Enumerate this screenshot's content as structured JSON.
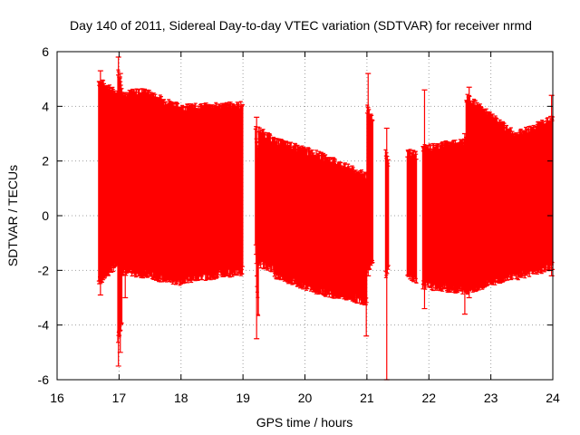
{
  "chart_data": {
    "type": "scatter",
    "title": "Day 140 of 2011, Sidereal Day-to-day VTEC variation (SDTVAR) for receiver nrmd",
    "xlabel": "GPS time / hours",
    "ylabel": "SDTVAR / TECUs",
    "xlim": [
      16,
      24
    ],
    "ylim": [
      -6,
      6
    ],
    "xticks": [
      "16",
      "17",
      "18",
      "19",
      "20",
      "21",
      "22",
      "23",
      "24"
    ],
    "yticks": [
      "-6",
      "-4",
      "-2",
      "0",
      "2",
      "4",
      "6"
    ],
    "grid": true,
    "series_color": "#ff0000",
    "segments": [
      {
        "x_start": 16.67,
        "x_end": 16.98,
        "upper_start": 5.0,
        "upper_end": 4.5,
        "lower_start": -2.5,
        "lower_end": -1.8,
        "spikes": [
          {
            "x": 16.7,
            "upper": 5.3,
            "lower": -2.9
          }
        ]
      },
      {
        "x_start": 16.98,
        "x_end": 17.05,
        "upper_start": 5.4,
        "upper_end": 4.8,
        "lower_start": -4.6,
        "lower_end": -3.9,
        "spikes": [
          {
            "x": 16.99,
            "upper": 5.8,
            "lower": -5.5
          },
          {
            "x": 17.02,
            "upper": 5.2,
            "lower": -5.0
          }
        ]
      },
      {
        "x_start": 17.05,
        "x_end": 17.4,
        "upper_start": 4.5,
        "upper_end": 4.6,
        "lower_start": -2.1,
        "lower_end": -2.2,
        "spikes": [
          {
            "x": 17.1,
            "upper": 4.5,
            "lower": -3.0
          }
        ]
      },
      {
        "x_start": 17.4,
        "x_end": 18.0,
        "upper_start": 4.6,
        "upper_end": 4.0,
        "lower_start": -2.2,
        "lower_end": -2.5,
        "spikes": []
      },
      {
        "x_start": 18.0,
        "x_end": 19.0,
        "upper_start": 4.0,
        "upper_end": 4.1,
        "lower_start": -2.4,
        "lower_end": -2.1,
        "spikes": []
      },
      {
        "x_start": 19.2,
        "x_end": 19.25,
        "upper_start": 3.4,
        "upper_end": 2.0,
        "lower_start": -1.2,
        "lower_end": -4.0,
        "spikes": [
          {
            "x": 19.22,
            "upper": 3.6,
            "lower": -4.5
          }
        ]
      },
      {
        "x_start": 19.25,
        "x_end": 19.5,
        "upper_start": 3.2,
        "upper_end": 2.8,
        "lower_start": -1.8,
        "lower_end": -2.0,
        "spikes": []
      },
      {
        "x_start": 19.5,
        "x_end": 20.2,
        "upper_start": 2.8,
        "upper_end": 2.3,
        "lower_start": -2.2,
        "lower_end": -2.8,
        "spikes": []
      },
      {
        "x_start": 20.2,
        "x_end": 21.0,
        "upper_start": 2.3,
        "upper_end": 1.5,
        "lower_start": -2.8,
        "lower_end": -3.2,
        "spikes": [
          {
            "x": 20.99,
            "upper": 1.0,
            "lower": -4.4
          }
        ]
      },
      {
        "x_start": 21.0,
        "x_end": 21.1,
        "upper_start": 4.0,
        "upper_end": 3.5,
        "lower_start": -2.0,
        "lower_end": -1.8,
        "spikes": [
          {
            "x": 21.02,
            "upper": 5.2,
            "lower": -2.2
          }
        ]
      },
      {
        "x_start": 21.3,
        "x_end": 21.35,
        "upper_start": 2.4,
        "upper_end": 2.0,
        "lower_start": -2.2,
        "lower_end": -2.0,
        "spikes": [
          {
            "x": 21.32,
            "upper": 3.2,
            "lower": -6.0
          }
        ]
      },
      {
        "x_start": 21.65,
        "x_end": 21.8,
        "upper_start": 2.4,
        "upper_end": 2.3,
        "lower_start": -2.2,
        "lower_end": -2.4,
        "spikes": []
      },
      {
        "x_start": 21.9,
        "x_end": 22.6,
        "upper_start": 2.5,
        "upper_end": 2.8,
        "lower_start": -2.6,
        "lower_end": -2.8,
        "spikes": [
          {
            "x": 21.93,
            "upper": 4.6,
            "lower": -3.4
          },
          {
            "x": 22.58,
            "upper": 3.0,
            "lower": -3.6
          }
        ]
      },
      {
        "x_start": 22.6,
        "x_end": 23.4,
        "upper_start": 4.4,
        "upper_end": 3.0,
        "lower_start": -2.8,
        "lower_end": -2.2,
        "spikes": [
          {
            "x": 22.65,
            "upper": 4.7,
            "lower": -3.0
          }
        ]
      },
      {
        "x_start": 23.4,
        "x_end": 24.0,
        "upper_start": 3.0,
        "upper_end": 3.6,
        "lower_start": -2.3,
        "lower_end": -1.9,
        "spikes": [
          {
            "x": 23.98,
            "upper": 4.4,
            "lower": -2.2
          }
        ]
      }
    ]
  }
}
